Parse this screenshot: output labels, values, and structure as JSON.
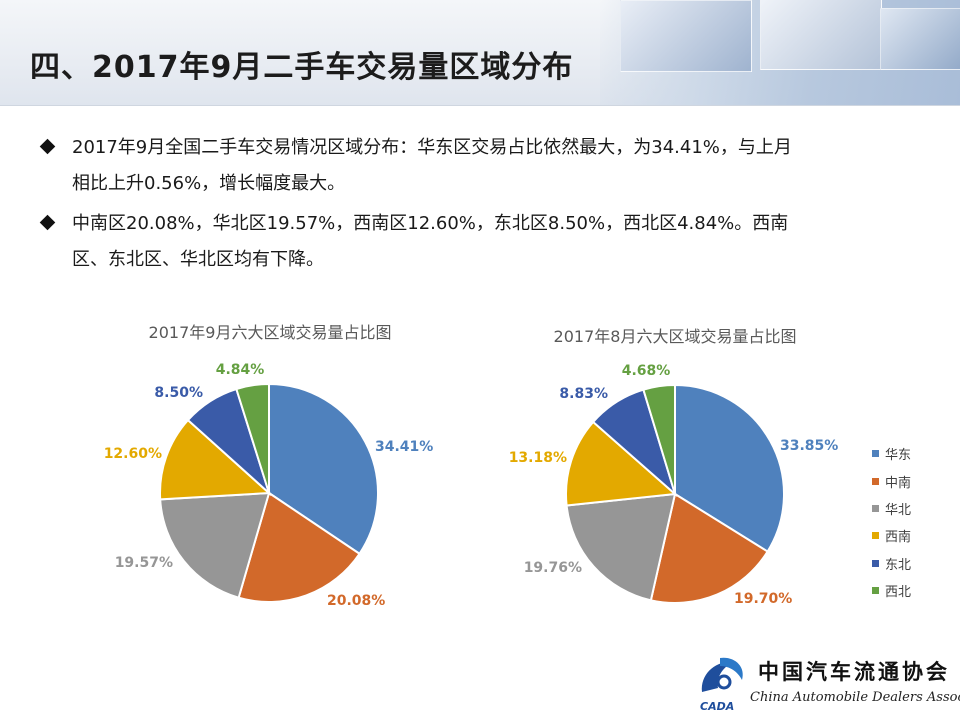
{
  "page": {
    "title": "四、2017年9月二手车交易量区域分布",
    "bullets": [
      {
        "line1": "2017年9月全国二手车交易情况区域分布：华东区交易占比依然最大，为34.41%，与上月",
        "line2": "相比上升0.56%，增长幅度最大。"
      },
      {
        "line1": "中南区20.08%，华北区19.57%，西南区12.60%，东北区8.50%，西北区4.84%。西南",
        "line2": "区、东北区、华北区均有下降。"
      }
    ]
  },
  "colors": {
    "华东": "#4f81bd",
    "中南": "#d2692a",
    "华北": "#969696",
    "西南": "#e3a900",
    "东北": "#3a5ba8",
    "西北": "#65a042"
  },
  "chart_data": [
    {
      "type": "pie",
      "title": "2017年9月六大区域交易量占比图",
      "categories": [
        "华东",
        "中南",
        "华北",
        "西南",
        "东北",
        "西北"
      ],
      "values": [
        34.41,
        20.08,
        19.57,
        12.6,
        8.5,
        4.84
      ],
      "labels": [
        "34.41%",
        "20.08%",
        "19.57%",
        "12.60%",
        "8.50%",
        "4.84%"
      ]
    },
    {
      "type": "pie",
      "title": "2017年8月六大区域交易量占比图",
      "categories": [
        "华东",
        "中南",
        "华北",
        "西南",
        "东北",
        "西北"
      ],
      "values": [
        33.85,
        19.7,
        19.76,
        13.18,
        8.83,
        4.68
      ],
      "labels": [
        "33.85%",
        "19.70%",
        "19.76%",
        "13.18%",
        "8.83%",
        "4.68%"
      ],
      "legend": {
        "position": "right",
        "entries": [
          "华东",
          "中南",
          "华北",
          "西南",
          "东北",
          "西北"
        ]
      }
    }
  ],
  "logo": {
    "cn": "中国汽车流通协会",
    "en": "China Automobile Dealers Association",
    "mark_text": "CADA"
  }
}
